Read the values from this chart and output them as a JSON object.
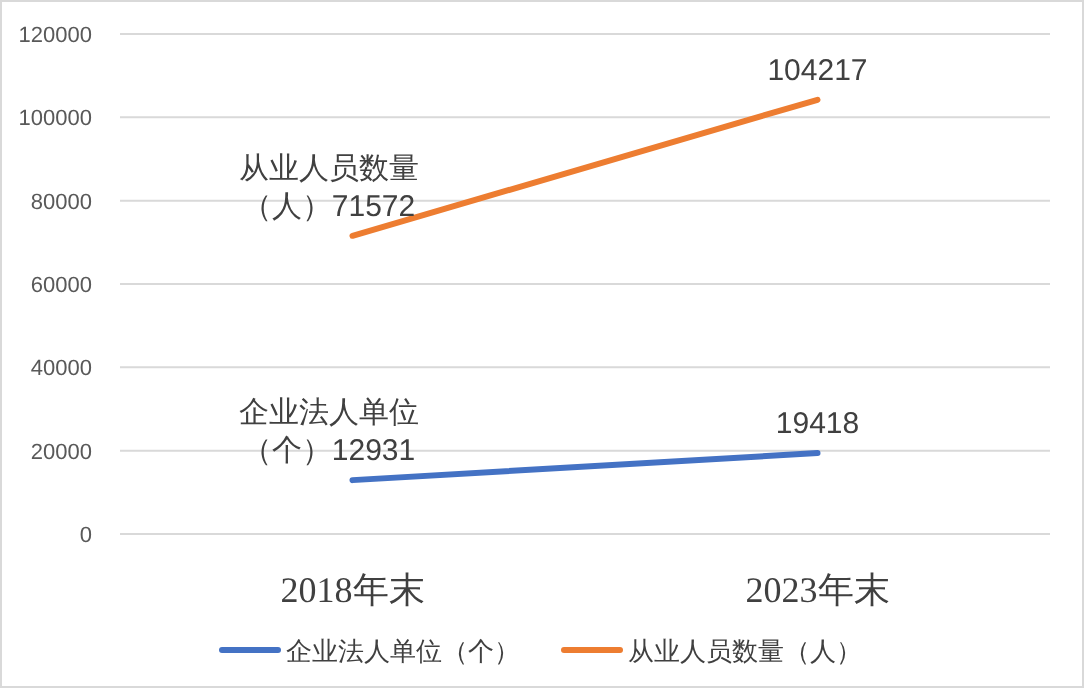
{
  "chart_data": {
    "type": "line",
    "categories": [
      "2018年末",
      "2023年末"
    ],
    "series": [
      {
        "name": "企业法人单位（个）",
        "color": "#4472c4",
        "values": [
          12931,
          19418
        ],
        "value_labels": [
          "企业法人单位（个）12931",
          "19418"
        ]
      },
      {
        "name": "从业人员数量（人）",
        "color": "#ed7d31",
        "values": [
          71572,
          104217
        ],
        "value_labels": [
          "从业人员数量（人）71572",
          "104217"
        ]
      }
    ],
    "ylim": [
      0,
      120000
    ],
    "yticks": [
      0,
      20000,
      40000,
      60000,
      80000,
      100000,
      120000
    ],
    "grid": "y",
    "legend": "bottom",
    "marker": "none",
    "line_style": "solid"
  }
}
